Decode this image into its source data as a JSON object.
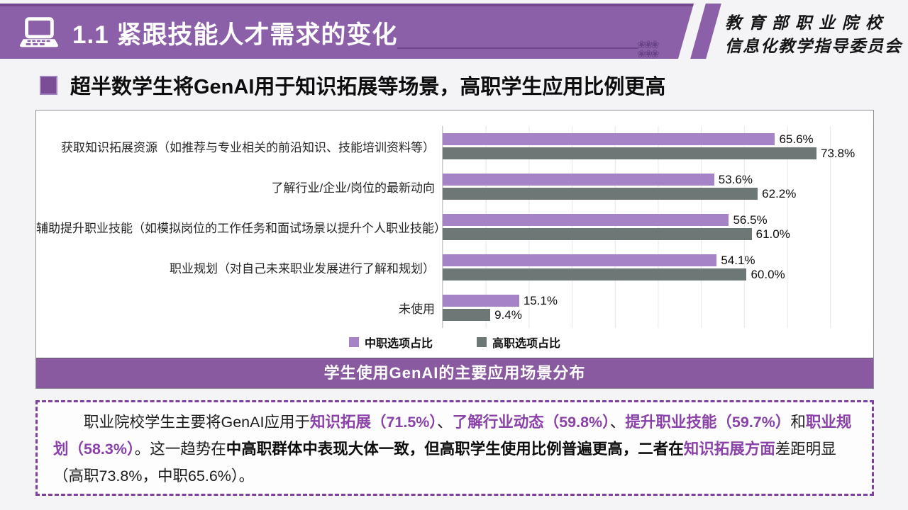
{
  "header": {
    "title": "1.1 紧跟技能人才需求的变化",
    "org_line1": "教育部职业院校",
    "org_line2": "信息化教学指导委员会",
    "ornament": "❀❀❀"
  },
  "section": {
    "title": "超半数学生将GenAI用于知识拓展等场景，高职学生应用比例更高"
  },
  "chart_data": {
    "type": "bar",
    "orientation": "horizontal",
    "title": "学生使用GenAI的主要应用场景分布",
    "categories": [
      "获取知识拓展资源（如推荐与专业相关的前沿知识、技能培训资料等）",
      "了解行业/企业/岗位的最新动向",
      "辅助提升职业技能（如模拟岗位的工作任务和面试场景以提升个人职业技能）",
      "职业规划（对自己未来职业发展进行了解和规划）",
      "未使用"
    ],
    "series": [
      {
        "name": "中职选项占比",
        "color": "#a583c6",
        "values": [
          65.6,
          53.6,
          56.5,
          54.1,
          15.1
        ],
        "labels": [
          "65.6%",
          "53.6%",
          "56.5%",
          "54.1%",
          "15.1%"
        ]
      },
      {
        "name": "高职选项占比",
        "color": "#6d7876",
        "values": [
          73.8,
          62.2,
          61.0,
          60.0,
          9.4
        ],
        "labels": [
          "73.8%",
          "62.2%",
          "61.0%",
          "60.0%",
          "9.4%"
        ]
      }
    ],
    "xlim": [
      0,
      85
    ],
    "grid": true,
    "legend_position": "bottom",
    "value_suffix": "%"
  },
  "caption": "学生使用GenAI的主要应用场景分布",
  "summary": {
    "segments": [
      {
        "text": "职业院校学生主要将GenAI应用于",
        "style": "normal"
      },
      {
        "text": "知识拓展（71.5%）",
        "style": "purple"
      },
      {
        "text": "、",
        "style": "normal"
      },
      {
        "text": "了解行业动态（59.8%）",
        "style": "purple"
      },
      {
        "text": "、",
        "style": "normal"
      },
      {
        "text": "提升职业技能（59.7%）",
        "style": "purple"
      },
      {
        "text": "和",
        "style": "normal"
      },
      {
        "text": "职业规划（58.3%）",
        "style": "purple"
      },
      {
        "text": "。这一趋势在",
        "style": "normal"
      },
      {
        "text": "中高职群体中表现大体一致，但高职学生使用比例普遍更高，二者在",
        "style": "bold"
      },
      {
        "text": "知识拓展方面",
        "style": "purple"
      },
      {
        "text": "差距明显（高职73.8%，中职65.6%）。",
        "style": "normal"
      }
    ]
  },
  "colors": {
    "header_purple": "#8b60a8",
    "header_top_edge": "#72478c",
    "caption_purple": "#8a5aa0",
    "bullet_purple": "#7b4d96",
    "bar_mid_vocational": "#a583c6",
    "bar_higher_vocational": "#6d7876",
    "summary_text_purple": "#8a42a8",
    "summary_border_purple": "#7e3f9d",
    "background": "#f4f3f6"
  }
}
